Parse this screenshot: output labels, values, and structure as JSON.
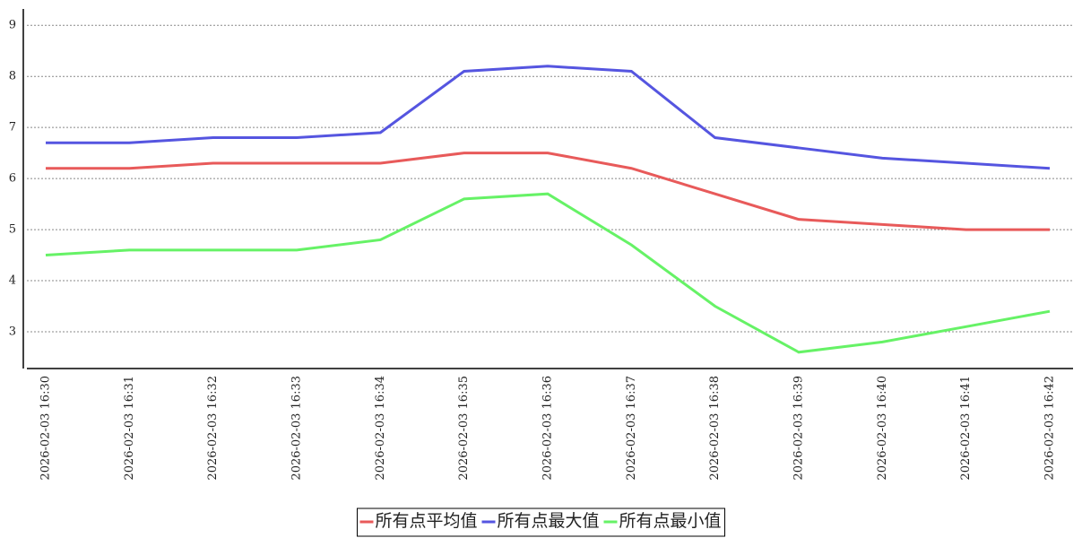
{
  "chart_data": {
    "type": "line",
    "categories": [
      "2026-02-03 16:30",
      "2026-02-03 16:31",
      "2026-02-03 16:32",
      "2026-02-03 16:33",
      "2026-02-03 16:34",
      "2026-02-03 16:35",
      "2026-02-03 16:36",
      "2026-02-03 16:37",
      "2026-02-03 16:38",
      "2026-02-03 16:39",
      "2026-02-03 16:40",
      "2026-02-03 16:41",
      "2026-02-03 16:42"
    ],
    "series": [
      {
        "name": "所有点平均值",
        "color": "#e85a5a",
        "values": [
          6.2,
          6.2,
          6.3,
          6.3,
          6.3,
          6.5,
          6.5,
          6.2,
          5.7,
          5.2,
          5.1,
          5.0,
          5.0
        ]
      },
      {
        "name": "所有点最大值",
        "color": "#5555e0",
        "values": [
          6.7,
          6.7,
          6.8,
          6.8,
          6.9,
          8.1,
          8.2,
          8.1,
          6.8,
          6.6,
          6.4,
          6.3,
          6.2
        ]
      },
      {
        "name": "所有点最小值",
        "color": "#66f266",
        "values": [
          4.5,
          4.6,
          4.6,
          4.6,
          4.8,
          5.6,
          5.7,
          4.7,
          3.5,
          2.6,
          2.8,
          3.1,
          3.4
        ]
      }
    ],
    "ylim": [
      2.28,
      9.32
    ],
    "yticks": [
      3,
      4,
      5,
      6,
      7,
      8,
      9
    ],
    "grid": true
  }
}
